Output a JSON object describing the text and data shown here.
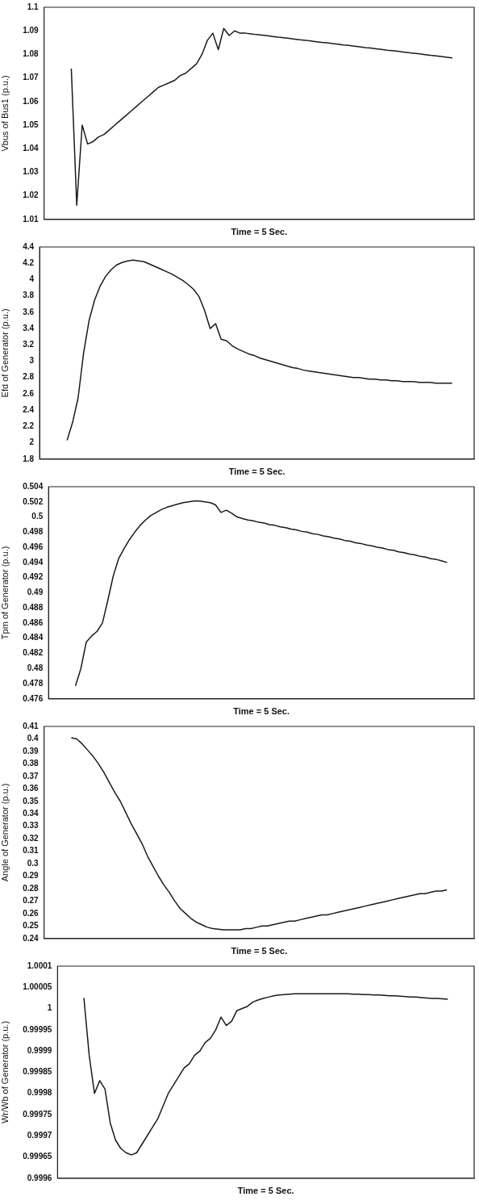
{
  "chart_data": [
    {
      "type": "line",
      "ylabel": "Vbus of Bus1 (p.u.)",
      "xlabel": "Time = 5 Sec.",
      "tick_labels": "y",
      "marker": "none",
      "line_style": "solid",
      "color": "#1a1a1a",
      "ylim": [
        1.01,
        1.1
      ],
      "yticks": [
        1.01,
        1.02,
        1.03,
        1.04,
        1.05,
        1.06,
        1.07,
        1.08,
        1.09,
        1.1
      ],
      "categories": [
        null,
        null,
        null,
        null,
        null,
        null,
        null,
        null,
        null,
        null,
        null,
        null,
        null,
        null,
        null,
        null,
        null,
        null,
        null,
        null,
        null,
        null,
        null,
        null,
        null,
        null,
        null,
        null,
        null,
        null,
        null,
        null,
        null,
        null,
        null,
        null,
        null,
        null,
        null,
        null,
        null,
        null,
        null,
        null,
        null,
        null,
        null,
        null,
        null,
        null,
        null,
        null,
        null,
        null,
        null,
        null,
        null,
        null,
        null,
        null,
        null,
        null,
        null,
        null,
        null,
        null,
        null,
        null,
        null,
        null,
        null,
        null,
        null,
        null,
        null,
        null,
        null,
        null,
        null,
        null
      ],
      "values": [
        null,
        null,
        null,
        null,
        null,
        1.074,
        1.016,
        1.05,
        1.042,
        1.043,
        1.045,
        1.046,
        1.048,
        1.05,
        1.052,
        1.054,
        1.056,
        1.058,
        1.06,
        1.062,
        1.064,
        1.066,
        1.067,
        1.068,
        1.069,
        1.071,
        1.072,
        1.074,
        1.076,
        1.08,
        1.086,
        1.089,
        1.082,
        1.091,
        1.088,
        1.09,
        1.089,
        1.089,
        1.0887,
        1.0884,
        1.0882,
        1.0879,
        1.0876,
        1.0873,
        1.0871,
        1.0868,
        1.0865,
        1.0862,
        1.086,
        1.0857,
        1.0854,
        1.0851,
        1.0849,
        1.0846,
        1.0843,
        1.084,
        1.0838,
        1.0835,
        1.0832,
        1.0829,
        1.0827,
        1.0824,
        1.0821,
        1.0818,
        1.0816,
        1.0813,
        1.081,
        1.0807,
        1.0805,
        1.0802,
        1.0799,
        1.0796,
        1.0794,
        1.0791,
        1.0788,
        1.0785,
        null,
        null,
        null,
        null
      ]
    },
    {
      "type": "line",
      "ylabel": "Efd of Generator (p.u.)",
      "xlabel": "Time = 5 Sec.",
      "tick_labels": "y",
      "marker": "none",
      "line_style": "solid",
      "color": "#1a1a1a",
      "ylim": [
        1.8,
        4.4
      ],
      "yticks": [
        1.8,
        2,
        2.2,
        2.4,
        2.6,
        2.8,
        3,
        3.2,
        3.4,
        3.6,
        3.8,
        4,
        4.2,
        4.4
      ],
      "categories": [
        null,
        null,
        null,
        null,
        null,
        null,
        null,
        null,
        null,
        null,
        null,
        null,
        null,
        null,
        null,
        null,
        null,
        null,
        null,
        null,
        null,
        null,
        null,
        null,
        null,
        null,
        null,
        null,
        null,
        null,
        null,
        null,
        null,
        null,
        null,
        null,
        null,
        null,
        null,
        null,
        null,
        null,
        null,
        null,
        null,
        null,
        null,
        null,
        null,
        null,
        null,
        null,
        null,
        null,
        null,
        null,
        null,
        null,
        null,
        null,
        null,
        null,
        null,
        null,
        null,
        null,
        null,
        null,
        null,
        null,
        null,
        null,
        null,
        null,
        null,
        null,
        null,
        null,
        null,
        null
      ],
      "values": [
        null,
        null,
        null,
        null,
        null,
        2.03,
        2.25,
        2.55,
        3.1,
        3.5,
        3.75,
        3.92,
        4.04,
        4.12,
        4.18,
        4.21,
        4.23,
        4.24,
        4.23,
        4.22,
        4.19,
        4.16,
        4.13,
        4.1,
        4.07,
        4.03,
        3.99,
        3.94,
        3.88,
        3.79,
        3.62,
        3.4,
        3.46,
        3.27,
        3.25,
        3.19,
        3.15,
        3.12,
        3.09,
        3.07,
        3.04,
        3.02,
        3.0,
        2.98,
        2.96,
        2.94,
        2.92,
        2.91,
        2.89,
        2.88,
        2.87,
        2.86,
        2.85,
        2.84,
        2.83,
        2.82,
        2.81,
        2.8,
        2.8,
        2.79,
        2.78,
        2.78,
        2.77,
        2.77,
        2.76,
        2.76,
        2.75,
        2.75,
        2.75,
        2.74,
        2.74,
        2.74,
        2.73,
        2.73,
        2.73,
        2.73,
        null,
        null,
        null,
        null
      ]
    },
    {
      "type": "line",
      "ylabel": "Tpm of Generator (p.u.)",
      "xlabel": "Time = 5 Sec.",
      "tick_labels": "y",
      "marker": "none",
      "line_style": "solid",
      "color": "#1a1a1a",
      "ylim": [
        0.476,
        0.504
      ],
      "yticks": [
        0.476,
        0.478,
        0.48,
        0.482,
        0.484,
        0.486,
        0.488,
        0.49,
        0.492,
        0.494,
        0.496,
        0.498,
        0.5,
        0.502,
        0.504
      ],
      "categories": [
        null,
        null,
        null,
        null,
        null,
        null,
        null,
        null,
        null,
        null,
        null,
        null,
        null,
        null,
        null,
        null,
        null,
        null,
        null,
        null,
        null,
        null,
        null,
        null,
        null,
        null,
        null,
        null,
        null,
        null,
        null,
        null,
        null,
        null,
        null,
        null,
        null,
        null,
        null,
        null,
        null,
        null,
        null,
        null,
        null,
        null,
        null,
        null,
        null,
        null,
        null,
        null,
        null,
        null,
        null,
        null,
        null,
        null,
        null,
        null,
        null,
        null,
        null,
        null,
        null,
        null,
        null,
        null,
        null,
        null,
        null,
        null,
        null,
        null,
        null,
        null,
        null,
        null,
        null,
        null
      ],
      "values": [
        null,
        null,
        null,
        null,
        null,
        0.4777,
        0.48,
        0.4835,
        0.4843,
        0.4849,
        0.486,
        0.489,
        0.4922,
        0.4945,
        0.4958,
        0.497,
        0.498,
        0.4989,
        0.4996,
        0.5002,
        0.5006,
        0.501,
        0.5013,
        0.5015,
        0.5017,
        0.5019,
        0.502,
        0.5021,
        0.5021,
        0.502,
        0.5019,
        0.5016,
        0.5006,
        0.5009,
        0.5005,
        0.5,
        0.4998,
        0.4996,
        0.4995,
        0.4993,
        0.4992,
        0.499,
        0.4989,
        0.4987,
        0.4986,
        0.4984,
        0.4983,
        0.4981,
        0.498,
        0.4978,
        0.4977,
        0.4975,
        0.4974,
        0.4972,
        0.4971,
        0.4969,
        0.4968,
        0.4966,
        0.4965,
        0.4963,
        0.4962,
        0.496,
        0.4959,
        0.4957,
        0.4956,
        0.4954,
        0.4953,
        0.4951,
        0.495,
        0.4948,
        0.4947,
        0.4945,
        0.4944,
        0.4942,
        0.494,
        null,
        null,
        null,
        null,
        null
      ]
    },
    {
      "type": "line",
      "ylabel": "Angle of Generator (p.u.)",
      "xlabel": "Time = 5 Sec.",
      "tick_labels": "y",
      "marker": "none",
      "line_style": "solid",
      "color": "#1a1a1a",
      "ylim": [
        0.24,
        0.41
      ],
      "yticks": [
        0.24,
        0.25,
        0.26,
        0.27,
        0.28,
        0.29,
        0.3,
        0.31,
        0.32,
        0.33,
        0.34,
        0.35,
        0.36,
        0.37,
        0.38,
        0.39,
        0.4,
        0.41
      ],
      "categories": [
        null,
        null,
        null,
        null,
        null,
        null,
        null,
        null,
        null,
        null,
        null,
        null,
        null,
        null,
        null,
        null,
        null,
        null,
        null,
        null,
        null,
        null,
        null,
        null,
        null,
        null,
        null,
        null,
        null,
        null,
        null,
        null,
        null,
        null,
        null,
        null,
        null,
        null,
        null,
        null,
        null,
        null,
        null,
        null,
        null,
        null,
        null,
        null,
        null,
        null,
        null,
        null,
        null,
        null,
        null,
        null,
        null,
        null,
        null,
        null,
        null,
        null,
        null,
        null,
        null,
        null,
        null,
        null,
        null,
        null,
        null,
        null,
        null,
        null,
        null,
        null,
        null,
        null,
        null,
        null
      ],
      "values": [
        null,
        null,
        null,
        null,
        null,
        0.401,
        0.4,
        0.396,
        0.391,
        0.386,
        0.38,
        0.373,
        0.365,
        0.357,
        0.35,
        0.341,
        0.332,
        0.324,
        0.316,
        0.306,
        0.298,
        0.29,
        0.283,
        0.277,
        0.27,
        0.264,
        0.26,
        0.256,
        0.253,
        0.251,
        0.249,
        0.248,
        0.2475,
        0.247,
        0.247,
        0.247,
        0.247,
        0.248,
        0.248,
        0.249,
        0.25,
        0.25,
        0.251,
        0.252,
        0.253,
        0.254,
        0.254,
        0.255,
        0.256,
        0.257,
        0.258,
        0.259,
        0.259,
        0.26,
        0.261,
        0.262,
        0.263,
        0.264,
        0.265,
        0.266,
        0.267,
        0.268,
        0.269,
        0.27,
        0.271,
        0.272,
        0.273,
        0.274,
        0.275,
        0.276,
        0.276,
        0.277,
        0.278,
        0.278,
        0.279,
        null,
        null,
        null,
        null,
        null
      ]
    },
    {
      "type": "line",
      "ylabel": "Wr/Wb of Generator (p.u.)",
      "xlabel": "Time = 5 Sec.",
      "tick_labels": "y",
      "marker": "none",
      "line_style": "solid",
      "color": "#1a1a1a",
      "ylim": [
        0.9996,
        1.0001
      ],
      "yticks": [
        0.9996,
        0.99965,
        0.9997,
        0.99975,
        0.9998,
        0.99985,
        0.9999,
        0.99995,
        1,
        1.00005,
        1.0001
      ],
      "categories": [
        null,
        null,
        null,
        null,
        null,
        null,
        null,
        null,
        null,
        null,
        null,
        null,
        null,
        null,
        null,
        null,
        null,
        null,
        null,
        null,
        null,
        null,
        null,
        null,
        null,
        null,
        null,
        null,
        null,
        null,
        null,
        null,
        null,
        null,
        null,
        null,
        null,
        null,
        null,
        null,
        null,
        null,
        null,
        null,
        null,
        null,
        null,
        null,
        null,
        null,
        null,
        null,
        null,
        null,
        null,
        null,
        null,
        null,
        null,
        null,
        null,
        null,
        null,
        null,
        null,
        null,
        null,
        null,
        null,
        null,
        null,
        null,
        null,
        null,
        null,
        null,
        null,
        null,
        null,
        null
      ],
      "values": [
        null,
        null,
        null,
        null,
        null,
        1.000025,
        0.99989,
        0.9998,
        0.99983,
        0.99981,
        0.99973,
        0.99969,
        0.99967,
        0.99966,
        0.999655,
        0.99966,
        0.99968,
        0.9997,
        0.99972,
        0.99974,
        0.99977,
        0.9998,
        0.99982,
        0.99984,
        0.99986,
        0.99987,
        0.99989,
        0.9999,
        0.99992,
        0.99993,
        0.99995,
        0.99998,
        0.99996,
        0.99997,
        0.999995,
        1.0,
        1.000005,
        1.000015,
        1.00002,
        1.000024,
        1.000027,
        1.00003,
        1.000032,
        1.000033,
        1.000034,
        1.000035,
        1.000035,
        1.000035,
        1.000035,
        1.000035,
        1.000035,
        1.000035,
        1.000035,
        1.000035,
        1.000035,
        1.000035,
        1.000034,
        1.000034,
        1.000033,
        1.000033,
        1.000032,
        1.000032,
        1.000031,
        1.00003,
        1.00003,
        1.000029,
        1.000028,
        1.000027,
        1.000027,
        1.000026,
        1.000025,
        1.000024,
        1.000024,
        1.000023,
        1.000022,
        null,
        null,
        null,
        null,
        null
      ]
    }
  ]
}
